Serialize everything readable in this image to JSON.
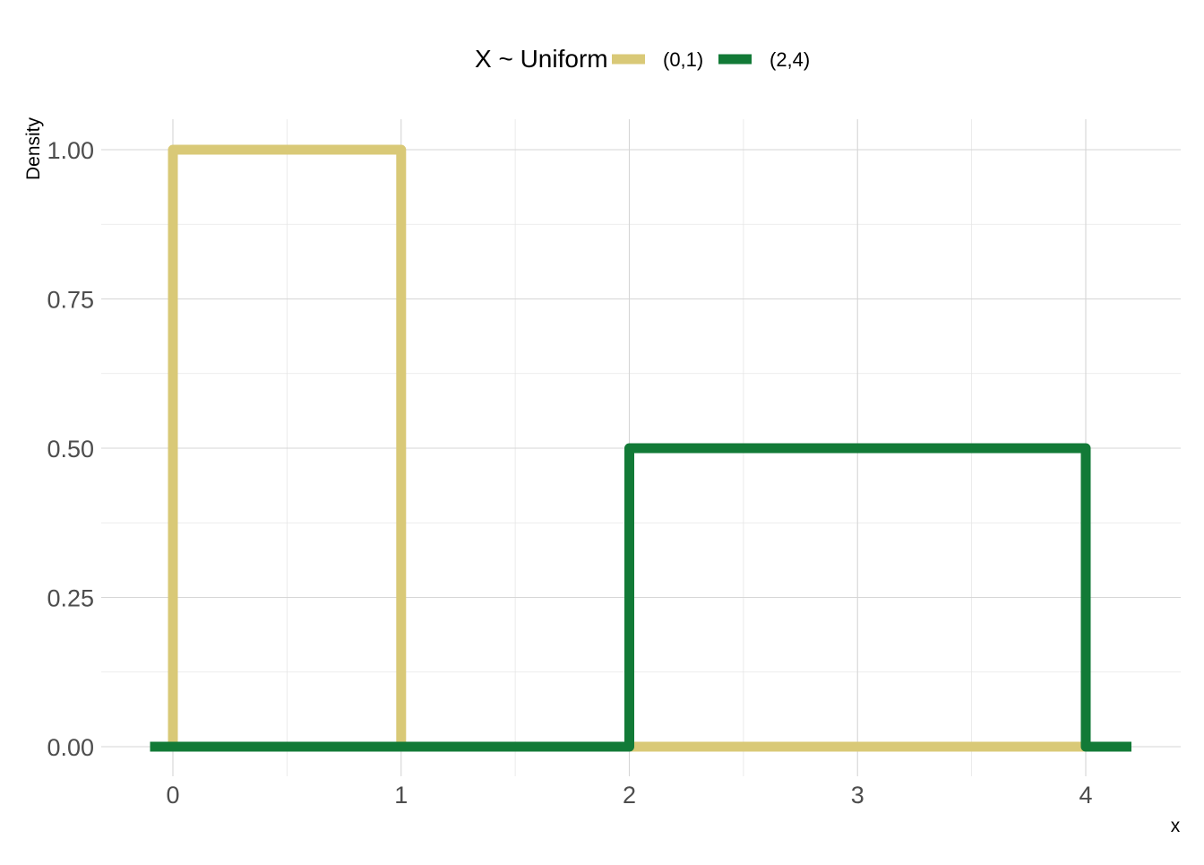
{
  "chart_data": {
    "type": "line",
    "legend": {
      "title": "X ~ Uniform",
      "position": "top"
    },
    "xlabel": "x",
    "ylabel": "Density",
    "xlim": [
      -0.1,
      4.2
    ],
    "ylim": [
      0,
      1
    ],
    "x_ticks": [
      0,
      1,
      2,
      3,
      4
    ],
    "x_tick_labels": [
      "0",
      "1",
      "2",
      "3",
      "4"
    ],
    "y_ticks": [
      0,
      0.25,
      0.5,
      0.75,
      1
    ],
    "y_tick_labels": [
      "0.00",
      "0.25",
      "0.50",
      "0.75",
      "1.00"
    ],
    "grid": true,
    "series": [
      {
        "name": "(0,1)",
        "color": "#d9c977",
        "x": [
          -0.1,
          0,
          0,
          1,
          1,
          4.2
        ],
        "y": [
          0,
          0,
          1,
          1,
          0,
          0
        ]
      },
      {
        "name": "(2,4)",
        "color": "#127a37",
        "x": [
          -0.1,
          2,
          2,
          4,
          4,
          4.2
        ],
        "y": [
          0,
          0,
          0.5,
          0.5,
          0,
          0
        ]
      }
    ]
  }
}
